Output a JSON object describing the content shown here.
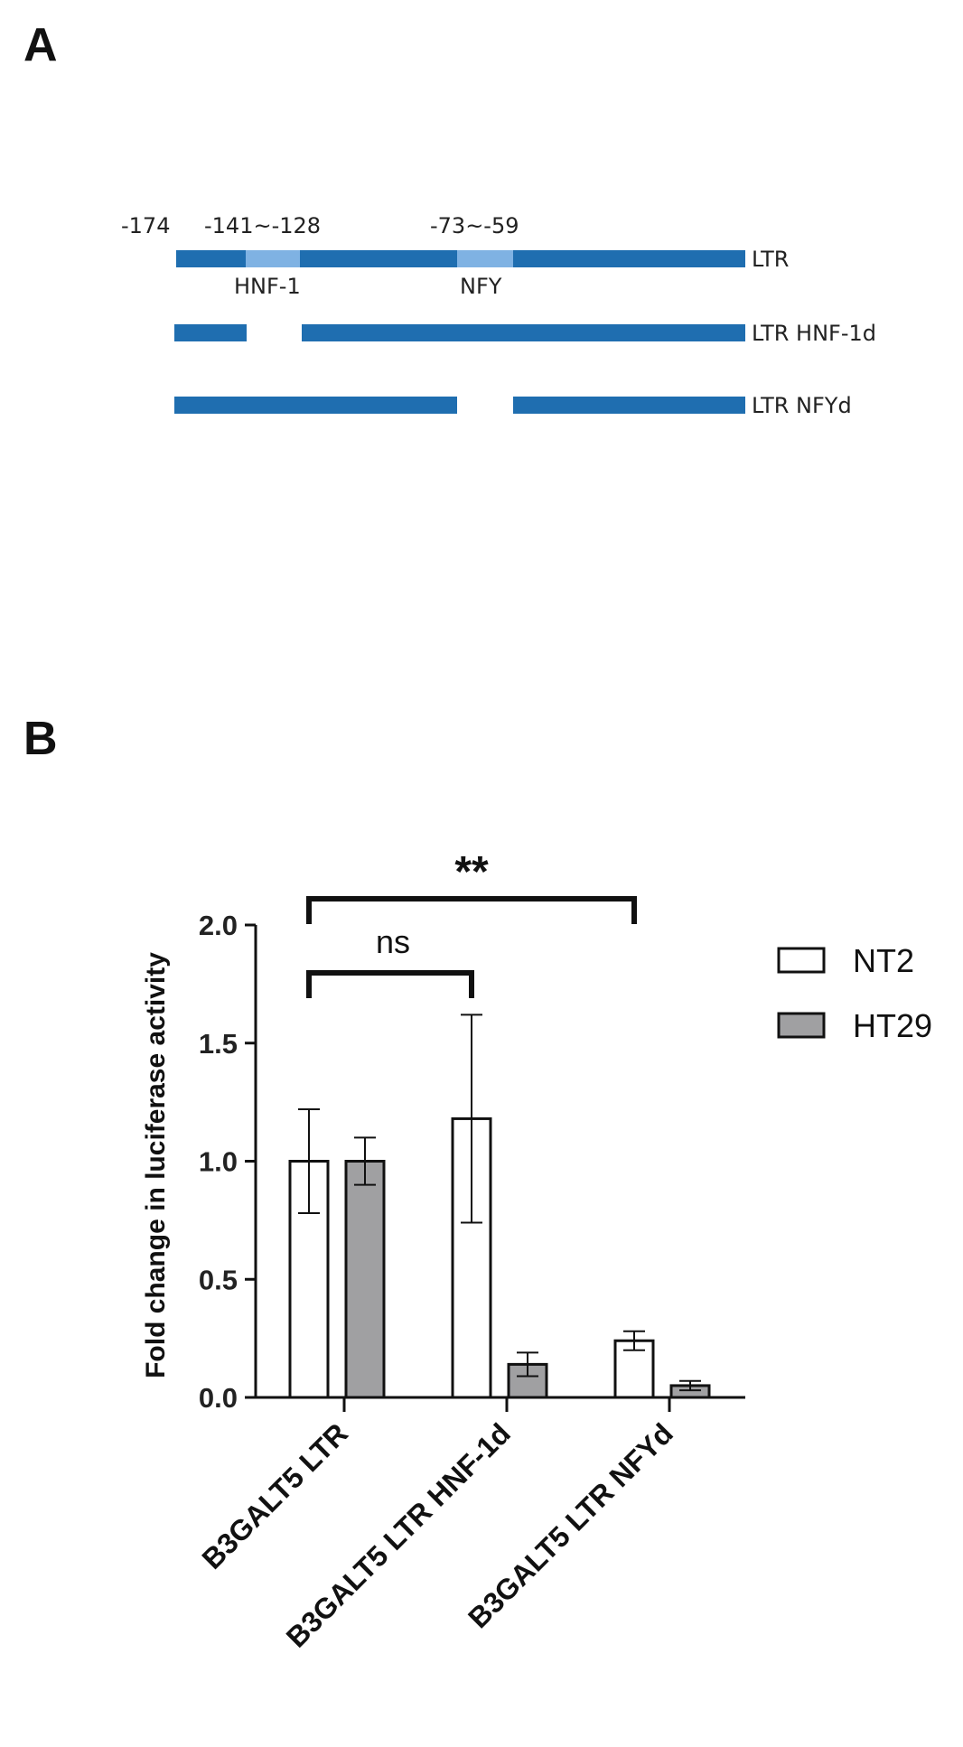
{
  "panels": {
    "a": "A",
    "b": "B"
  },
  "diagram": {
    "positions": {
      "start": "-174",
      "hnf1_range": "-141~-128",
      "nfy_range": "-73~-59"
    },
    "sites": {
      "hnf1": "HNF-1",
      "nfy": "NFY"
    },
    "constructs": [
      "LTR",
      "LTR HNF-1d",
      "LTR NFYd"
    ],
    "colors": {
      "bar": "#1f6eb0",
      "site": "#7fb2e3"
    }
  },
  "chart_data": {
    "type": "bar",
    "categories": [
      "B3GALT5 LTR",
      "B3GALT5 LTR HNF-1d",
      "B3GALT5 LTR NFYd"
    ],
    "series": [
      {
        "name": "NT2",
        "values": [
          1.0,
          1.18,
          0.24
        ],
        "errors": [
          0.22,
          0.44,
          0.04
        ],
        "color": "#ffffff"
      },
      {
        "name": "HT29",
        "values": [
          1.0,
          0.14,
          0.05
        ],
        "errors": [
          0.1,
          0.05,
          0.02
        ],
        "color": "#a0a0a2"
      }
    ],
    "ylabel": "Fold change in luciferase activity",
    "ylim": [
      0,
      2.0
    ],
    "yticks": [
      "0.0",
      "0.5",
      "1.0",
      "1.5",
      "2.0"
    ],
    "legend_placement": "top-right",
    "grid": false,
    "annotations": [
      {
        "text": "**",
        "between": [
          "B3GALT5 LTR",
          "B3GALT5 LTR NFYd"
        ],
        "series": "NT2"
      },
      {
        "text": "ns",
        "between": [
          "B3GALT5 LTR",
          "B3GALT5 LTR HNF-1d"
        ],
        "series": "NT2"
      }
    ]
  }
}
